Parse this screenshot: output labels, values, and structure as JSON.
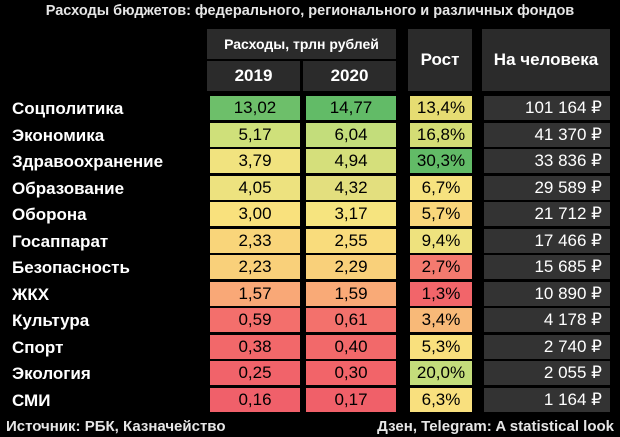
{
  "title": "Расходы бюджетов: федерального, регионального и различных фондов",
  "header": {
    "spending": "Расходы, трлн рублей",
    "year1": "2019",
    "year2": "2020",
    "growth": "Рост",
    "per_capita": "На человека"
  },
  "footer": {
    "source": "Источник: РБК, Казначейство",
    "credit": "Дзен, Telegram: A statistical look"
  },
  "chart_data": {
    "type": "table",
    "columns": [
      "2019",
      "2020",
      "Рост",
      "На человека"
    ],
    "rows": [
      {
        "category": "Соцполитика",
        "v2019": "13,02",
        "v2020": "14,77",
        "growth": "13,4%",
        "per_capita": "101 164 ₽",
        "c2019": "#6dbf6a",
        "c2020": "#62bb67",
        "cgrowth": "#e6dc72"
      },
      {
        "category": "Экономика",
        "v2019": "5,17",
        "v2020": "6,04",
        "growth": "16,8%",
        "per_capita": "41 370 ₽",
        "c2019": "#cfe07a",
        "c2020": "#c3dd7b",
        "cgrowth": "#d4dd75"
      },
      {
        "category": "Здравоохранение",
        "v2019": "3,79",
        "v2020": "4,94",
        "growth": "30,3%",
        "per_capita": "33 836 ₽",
        "c2019": "#f1e37f",
        "c2020": "#d5df7b",
        "cgrowth": "#62bb67"
      },
      {
        "category": "Образование",
        "v2019": "4,05",
        "v2020": "4,32",
        "growth": "6,7%",
        "per_capita": "29 589 ₽",
        "c2019": "#ede27f",
        "c2020": "#e3df7e",
        "cgrowth": "#f6e27f"
      },
      {
        "category": "Оборона",
        "v2019": "3,00",
        "v2020": "3,17",
        "growth": "5,7%",
        "per_capita": "21 712 ₽",
        "c2019": "#f9e17d",
        "c2020": "#f6e47f",
        "cgrowth": "#f9d67b"
      },
      {
        "category": "Госаппарат",
        "v2019": "2,33",
        "v2020": "2,55",
        "growth": "9,4%",
        "per_capita": "17 466 ₽",
        "c2019": "#f9d57a",
        "c2020": "#f9dc7c",
        "cgrowth": "#eee27e"
      },
      {
        "category": "Безопасность",
        "v2019": "2,23",
        "v2020": "2,29",
        "growth": "2,7%",
        "per_capita": "15 685 ₽",
        "c2019": "#f9d07a",
        "c2020": "#f9d07a",
        "cgrowth": "#f47a6f"
      },
      {
        "category": "ЖКХ",
        "v2019": "1,57",
        "v2020": "1,59",
        "growth": "1,3%",
        "per_capita": "10 890 ₽",
        "c2019": "#f9a877",
        "c2020": "#f9aa77",
        "cgrowth": "#f2656a"
      },
      {
        "category": "Культура",
        "v2019": "0,59",
        "v2020": "0,61",
        "growth": "3,4%",
        "per_capita": "4 178 ₽",
        "c2019": "#f36f6c",
        "c2020": "#f3716c",
        "cgrowth": "#f8b978"
      },
      {
        "category": "Спорт",
        "v2019": "0,38",
        "v2020": "0,40",
        "growth": "5,3%",
        "per_capita": "2 740 ₽",
        "c2019": "#f2686a",
        "c2020": "#f2696a",
        "cgrowth": "#f9e07d"
      },
      {
        "category": "Экология",
        "v2019": "0,25",
        "v2020": "0,30",
        "growth": "20,0%",
        "per_capita": "2 055 ₽",
        "c2019": "#f1636a",
        "c2020": "#f26469",
        "cgrowth": "#c4dd7b"
      },
      {
        "category": "СМИ",
        "v2019": "0,16",
        "v2020": "0,17",
        "growth": "6,3%",
        "per_capita": "1 164 ₽",
        "c2019": "#f0606a",
        "c2020": "#f06069",
        "cgrowth": "#f9e07e"
      }
    ]
  }
}
